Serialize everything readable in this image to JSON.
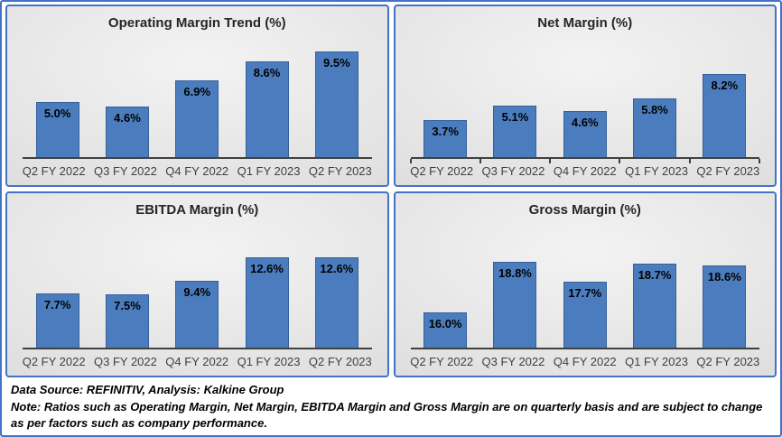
{
  "colors": {
    "figure_border": "#4472C4",
    "panel_border": "#4472C4",
    "bar_fill": "#4B7DBE",
    "bar_border": "#35609B",
    "axis_line": "#404040",
    "title_text": "#262626",
    "category_text": "#404040",
    "data_label_text": "#000000",
    "footer_text": "#000000",
    "panel_bg_inner": "#f3f3f3",
    "panel_bg_mid": "#e0e0e0",
    "panel_bg_outer": "#cccccc"
  },
  "chart_data": [
    {
      "type": "bar",
      "title": "Operating Margin Trend (%)",
      "categories": [
        "Q2 FY 2022",
        "Q3 FY 2022",
        "Q4 FY 2022",
        "Q1 FY 2023",
        "Q2 FY 2023"
      ],
      "values": [
        5.0,
        4.6,
        6.9,
        8.6,
        9.5
      ],
      "labels": [
        "5.0%",
        "4.6%",
        "6.9%",
        "8.6%",
        "9.5%"
      ],
      "ylim": [
        0,
        11
      ],
      "x_ticks": false,
      "data_label_position": "inside-end",
      "legend": "none",
      "grid": false
    },
    {
      "type": "bar",
      "title": "Net Margin (%)",
      "categories": [
        "Q2 FY 2022",
        "Q3 FY 2022",
        "Q4 FY 2022",
        "Q1 FY 2023",
        "Q2 FY 2023"
      ],
      "values": [
        3.7,
        5.1,
        4.6,
        5.8,
        8.2
      ],
      "labels": [
        "3.7%",
        "5.1%",
        "4.6%",
        "5.8%",
        "8.2%"
      ],
      "ylim": [
        0,
        12
      ],
      "x_ticks": true,
      "data_label_position": "inside-end",
      "legend": "none",
      "grid": false
    },
    {
      "type": "bar",
      "title": "EBITDA Margin (%)",
      "categories": [
        "Q2 FY 2022",
        "Q3 FY 2022",
        "Q4 FY 2022",
        "Q1 FY 2023",
        "Q2 FY 2023"
      ],
      "values": [
        7.7,
        7.5,
        9.4,
        12.6,
        12.6
      ],
      "labels": [
        "7.7%",
        "7.5%",
        "9.4%",
        "12.6%",
        "12.6%"
      ],
      "ylim": [
        0,
        17.5
      ],
      "x_ticks": false,
      "data_label_position": "inside-end",
      "legend": "none",
      "grid": false
    },
    {
      "type": "bar",
      "title": "Gross Margin (%)",
      "categories": [
        "Q2 FY 2022",
        "Q3 FY 2022",
        "Q4 FY 2022",
        "Q1 FY 2023",
        "Q2 FY 2023"
      ],
      "values": [
        16.0,
        18.8,
        17.7,
        18.7,
        18.6
      ],
      "labels": [
        "16.0%",
        "18.8%",
        "17.7%",
        "18.7%",
        "18.6%"
      ],
      "ylim": [
        14,
        21
      ],
      "x_ticks": false,
      "data_label_position": "inside-end",
      "legend": "none",
      "grid": false
    }
  ],
  "footer": {
    "source_line": "Data Source: REFINITIV, Analysis: Kalkine Group",
    "note_line": "Note: Ratios such as Operating Margin, Net Margin, EBITDA Margin and Gross Margin are on quarterly basis and are subject to change as per factors such as company performance."
  }
}
